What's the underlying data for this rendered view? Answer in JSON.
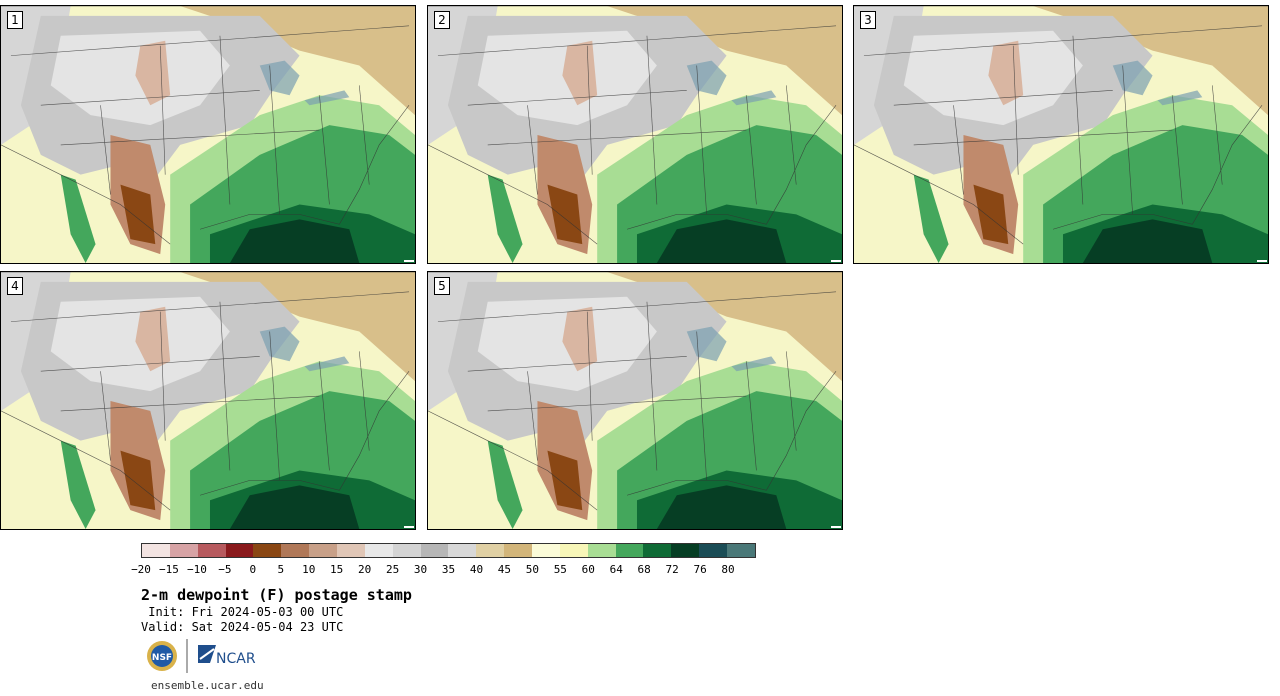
{
  "panels": [
    {
      "label": "1"
    },
    {
      "label": "2"
    },
    {
      "label": "3"
    },
    {
      "label": "4"
    },
    {
      "label": "5"
    }
  ],
  "colorbar": {
    "colors": [
      "#f3e4e2",
      "#d7a3a5",
      "#b75a5e",
      "#8a1a1d",
      "#8a4714",
      "#b07858",
      "#c8a088",
      "#e0c6b6",
      "#e8e8e8",
      "#d4d4d4",
      "#b6b6b6",
      "#d8d8d8",
      "#e0d0a4",
      "#d2b57a",
      "#fbfbd8",
      "#f7f6b8",
      "#a8dd94",
      "#44a75c",
      "#0f6b36",
      "#063e24",
      "#1b4d56",
      "#4a7878"
    ],
    "ticks": [
      "−20",
      "−15",
      "−10",
      "−5",
      "0",
      "5",
      "10",
      "15",
      "20",
      "25",
      "30",
      "35",
      "40",
      "45",
      "50",
      "55",
      "60",
      "64",
      "68",
      "72",
      "76",
      "80"
    ]
  },
  "title": "2-m dewpoint (F) postage stamp",
  "init": " Init: Fri 2024-05-03 00 UTC",
  "valid": "Valid: Sat 2024-05-04 23 UTC",
  "logos": [
    "NSF",
    "NCAR"
  ],
  "footer_url": "ensemble.ucar.edu"
}
